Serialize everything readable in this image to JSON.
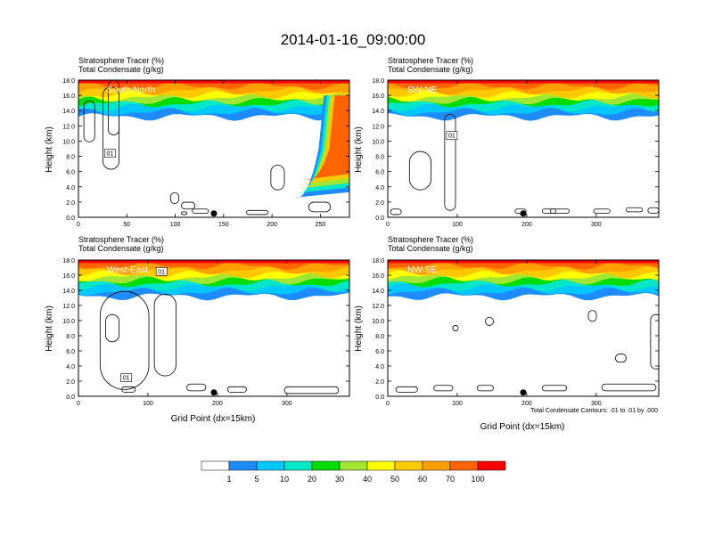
{
  "title": "2014-01-16_09:00:00",
  "panel_header_lines": [
    "Stratosphere Tracer   (%)",
    "Total Condensate   (g/kg)"
  ],
  "ylabel": "Height (km)",
  "xlabel": "Grid Point (dx=15km)",
  "contour_note": "Total Condensate Contours: .01 to .01 by .000",
  "colors": {
    "levels": [
      "#ffffff",
      "#1e8cff",
      "#00c8ff",
      "#00e6c8",
      "#00dc00",
      "#a0e632",
      "#ffff00",
      "#ffc800",
      "#ffa000",
      "#ff6400",
      "#ff0000"
    ]
  },
  "colorbar_labels": [
    "1",
    "5",
    "10",
    "20",
    "30",
    "40",
    "50",
    "60",
    "70",
    "100"
  ],
  "chart_data": [
    {
      "type": "heatmap",
      "panel": "South-North",
      "label": "South-North",
      "xlim": [
        0,
        280
      ],
      "ylim": [
        0,
        18
      ],
      "xticks": [
        "0",
        "50",
        "100",
        "150",
        "200",
        "250"
      ],
      "xtick_values": [
        0,
        50,
        100,
        150,
        200,
        250
      ],
      "yticks": [
        "0.0",
        "2.0",
        "4.0",
        "6.0",
        "8.0",
        "10.0",
        "12.0",
        "14.0",
        "16.0",
        "18.0"
      ],
      "contour_labels": [
        "01"
      ],
      "xlabel_shown": false
    },
    {
      "type": "heatmap",
      "panel": "SW-NE",
      "label": "SW-NE",
      "xlim": [
        0,
        390
      ],
      "ylim": [
        0,
        18
      ],
      "xticks": [
        "0",
        "100",
        "200",
        "300"
      ],
      "xtick_values": [
        0,
        100,
        200,
        300
      ],
      "yticks": [
        "0.0",
        "2.0",
        "4.0",
        "6.0",
        "8.0",
        "10.0",
        "12.0",
        "14.0",
        "16.0",
        "18.0"
      ],
      "contour_labels": [
        "01"
      ],
      "xlabel_shown": false
    },
    {
      "type": "heatmap",
      "panel": "West-East",
      "label": "West-East",
      "xlim": [
        0,
        390
      ],
      "ylim": [
        0,
        18
      ],
      "xticks": [
        "0",
        "100",
        "200",
        "300"
      ],
      "xtick_values": [
        0,
        100,
        200,
        300
      ],
      "yticks": [
        "0.0",
        "2.0",
        "4.0",
        "6.0",
        "8.0",
        "10.0",
        "12.0",
        "14.0",
        "16.0",
        "18.0"
      ],
      "contour_labels": [
        "01",
        "01"
      ],
      "xlabel_shown": true
    },
    {
      "type": "heatmap",
      "panel": "NW-SE",
      "label": "NW-SE",
      "xlim": [
        0,
        390
      ],
      "ylim": [
        0,
        18
      ],
      "xticks": [
        "0",
        "100",
        "200",
        "300"
      ],
      "xtick_values": [
        0,
        100,
        200,
        300
      ],
      "yticks": [
        "0.0",
        "2.0",
        "4.0",
        "6.0",
        "8.0",
        "10.0",
        "12.0",
        "14.0",
        "16.0",
        "18.0"
      ],
      "contour_labels": [],
      "xlabel_shown": true
    }
  ]
}
